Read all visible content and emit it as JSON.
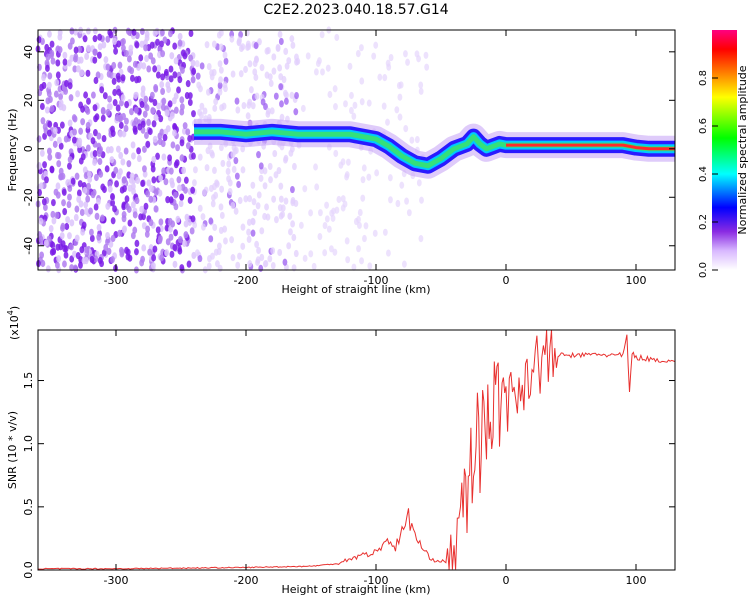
{
  "figure": {
    "title": "C2E2.2023.040.18.57.G14"
  },
  "colors": {
    "snr_line": "#e8312f",
    "axis": "#000000",
    "colormap": [
      "#ffffff",
      "#d8b8ff",
      "#8a2be2",
      "#0000ff",
      "#00ffff",
      "#00ff00",
      "#ffff00",
      "#ff8000",
      "#ff0000",
      "#ff0080"
    ]
  },
  "chart_data": [
    {
      "type": "heatmap",
      "xlabel": "Height of straight line (km)",
      "ylabel": "Frequency (Hz)",
      "xlim": [
        -360,
        130
      ],
      "ylim": [
        -50,
        49
      ],
      "xticks": [
        -300,
        -200,
        -100,
        0,
        100
      ],
      "xtick_labels": [
        "-300",
        "-200",
        "-100",
        "0",
        "100"
      ],
      "yticks": [
        -40,
        -20,
        0,
        20,
        40
      ],
      "ytick_labels": [
        "-40",
        "-20",
        "0",
        "20",
        "40"
      ],
      "colorbar": {
        "label": "Normalized spectral amplitude",
        "range": [
          0,
          1
        ],
        "ticks": [
          0.0,
          0.2,
          0.4,
          0.6,
          0.8
        ],
        "tick_labels": [
          "0.0",
          "0.2",
          "0.4",
          "0.6",
          "0.8"
        ]
      },
      "ridge": {
        "x": [
          -240,
          -220,
          -200,
          -180,
          -160,
          -140,
          -120,
          -100,
          -90,
          -80,
          -70,
          -60,
          -50,
          -40,
          -30,
          -25,
          -20,
          -15,
          -10,
          -5,
          0,
          20,
          40,
          60,
          80,
          90,
          100,
          110,
          120,
          130
        ],
        "y": [
          7,
          7,
          6,
          7,
          6,
          6,
          6,
          4,
          1,
          -3,
          -6,
          -7,
          -4,
          0,
          2,
          5,
          2,
          0,
          1,
          2,
          1.5,
          1.5,
          1.5,
          1.5,
          1.5,
          1.5,
          0.5,
          0,
          0,
          0
        ]
      }
    },
    {
      "type": "line",
      "xlabel": "Height of straight line (km)",
      "ylabel": "SNR (10 * v/v)",
      "scale_label": "(x10",
      "scale_exponent": "4",
      "scale_close": ")",
      "xlim": [
        -360,
        130
      ],
      "ylim": [
        0,
        1.9
      ],
      "xticks": [
        -300,
        -200,
        -100,
        0,
        100
      ],
      "xtick_labels": [
        "-300",
        "-200",
        "-100",
        "0",
        "100"
      ],
      "yticks": [
        0.0,
        0.5,
        1.0,
        1.5
      ],
      "ytick_labels": [
        "0.0",
        "0.5",
        "1.0",
        "1.5"
      ],
      "series": [
        {
          "x": [
            -360,
            -300,
            -200,
            -150,
            -130,
            -120,
            -110,
            -100,
            -95,
            -90,
            -85,
            -80,
            -75,
            -70,
            -65,
            -60,
            -55,
            -50,
            -45,
            -40,
            -35,
            -32,
            -30,
            -28,
            -25,
            -22,
            -20,
            -18,
            -15,
            -12,
            -10,
            -8,
            -5,
            -3,
            0,
            5,
            10,
            15,
            20,
            25,
            30,
            35,
            40,
            50,
            60,
            70,
            80,
            90,
            93,
            95,
            97,
            100,
            105,
            110,
            120,
            130
          ],
          "y": [
            0.01,
            0.01,
            0.02,
            0.03,
            0.05,
            0.09,
            0.12,
            0.14,
            0.2,
            0.24,
            0.18,
            0.3,
            0.42,
            0.28,
            0.18,
            0.11,
            0.08,
            0.07,
            0.06,
            0.09,
            0.3,
            0.7,
            0.4,
            1.0,
            0.6,
            1.3,
            0.8,
            1.2,
            1.1,
            1.4,
            1.05,
            1.7,
            1.2,
            1.5,
            1.4,
            1.3,
            1.45,
            1.55,
            1.62,
            1.65,
            1.67,
            1.69,
            1.7,
            1.7,
            1.7,
            1.71,
            1.7,
            1.7,
            1.85,
            1.4,
            1.72,
            1.68,
            1.68,
            1.67,
            1.66,
            1.65
          ]
        }
      ]
    }
  ]
}
